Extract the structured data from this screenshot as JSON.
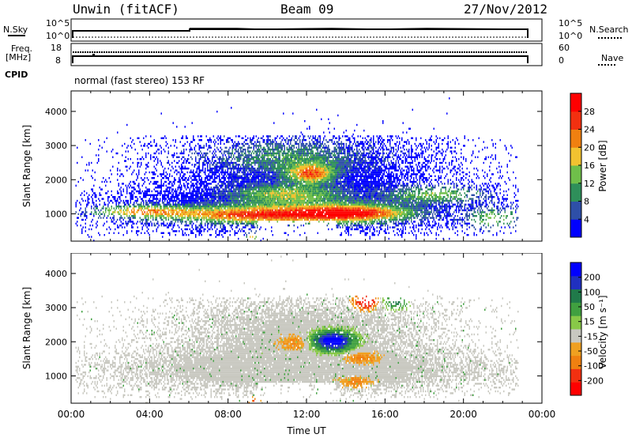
{
  "header": {
    "station": "Unwin (fitACF)",
    "beam": "Beam 09",
    "date": "27/Nov/2012"
  },
  "panel_labels": {
    "nsky": "N.Sky",
    "freq": "Freq.",
    "freq_unit": "[MHz]",
    "cpid": "CPID",
    "nsearch": "N.Search",
    "nave": "Nave",
    "cpid_text": "normal (fast stereo) 153 RF"
  },
  "colors": {
    "power_scale": [
      "#0000ff",
      "#2e4fa8",
      "#2e8f5a",
      "#6fbf4a",
      "#f2c230",
      "#f08010",
      "#f23010",
      "#ff0000"
    ],
    "velocity_scale": [
      "#ff0000",
      "#f23010",
      "#f08010",
      "#f0a020",
      "#c8c8c0",
      "#88c848",
      "#40a040",
      "#207a4a",
      "#2030c0",
      "#0000ff"
    ]
  },
  "chart_data": [
    {
      "type": "line",
      "title": "N.Sky / N.Search",
      "x_range": [
        "00:00",
        "24:00"
      ],
      "y_left_ticks": [
        "10^5",
        "10^0"
      ],
      "y_right_ticks": [
        "10^5",
        "10^0"
      ],
      "series": [
        {
          "name": "N.Sky"
        },
        {
          "name": "N.Search"
        }
      ]
    },
    {
      "type": "line",
      "title": "Freq. / Nave",
      "y_left_ticks": [
        "18",
        "8"
      ],
      "y_right_ticks": [
        "60",
        "0"
      ],
      "series": [
        {
          "name": "Freq."
        },
        {
          "name": "Nave"
        }
      ]
    },
    {
      "type": "heatmap",
      "ylabel": "Slant Range [km]",
      "xlabel": "",
      "x_ticks": [
        "00:00",
        "04:00",
        "08:00",
        "12:00",
        "16:00",
        "20:00",
        "00:00"
      ],
      "y_ticks": [
        "1000",
        "2000",
        "3000",
        "4000"
      ],
      "ylim": [
        200,
        4600
      ],
      "xlim_hours": [
        0,
        24
      ],
      "data_extent_hours": [
        0.2,
        22.8
      ],
      "colorbar": {
        "label": "Power [dB]",
        "ticks": [
          "4",
          "8",
          "12",
          "16",
          "20",
          "24",
          "28"
        ],
        "range": [
          0,
          32
        ]
      }
    },
    {
      "type": "heatmap",
      "ylabel": "Slant Range [km]",
      "xlabel": "Time UT",
      "x_ticks": [
        "00:00",
        "04:00",
        "08:00",
        "12:00",
        "16:00",
        "20:00",
        "00:00"
      ],
      "y_ticks": [
        "1000",
        "2000",
        "3000",
        "4000"
      ],
      "ylim": [
        200,
        4600
      ],
      "xlim_hours": [
        0,
        24
      ],
      "colorbar": {
        "label": "Velocity [m s⁻¹]",
        "ticks": [
          "200",
          "100",
          "50",
          "15",
          "-15",
          "-50",
          "-100",
          "-200"
        ]
      }
    }
  ]
}
